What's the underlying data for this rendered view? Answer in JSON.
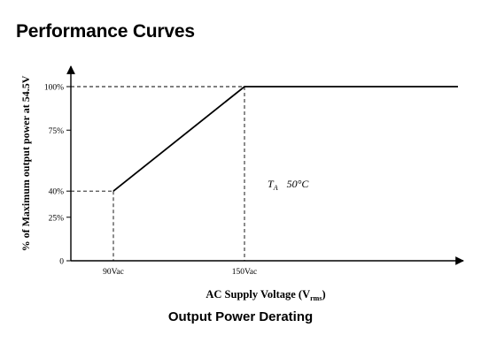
{
  "page": {
    "title": "Performance Curves",
    "caption": "Output Power Derating"
  },
  "chart_data": {
    "type": "line",
    "xlabel": "AC Supply Voltage (V",
    "xlabel_subscript": "rms",
    "xlabel_close": ")",
    "ylabel": "% of Maximum output power at 54.5V",
    "x_ticks": [
      {
        "value": 90,
        "label": "90Vac"
      },
      {
        "value": 150,
        "label": "150Vac"
      }
    ],
    "y_ticks": [
      {
        "value": 0,
        "label": "0"
      },
      {
        "value": 25,
        "label": "25%"
      },
      {
        "value": 40,
        "label": "40%"
      },
      {
        "value": 75,
        "label": "75%"
      },
      {
        "value": 100,
        "label": "100%"
      }
    ],
    "xlim": [
      60,
      250
    ],
    "ylim": [
      0,
      100
    ],
    "series": [
      {
        "x": [
          90,
          150,
          250
        ],
        "y": [
          40,
          100,
          100
        ]
      }
    ],
    "annotation": {
      "symbol": "T",
      "subscript": "A",
      "text": "50°C"
    },
    "grid": false
  }
}
